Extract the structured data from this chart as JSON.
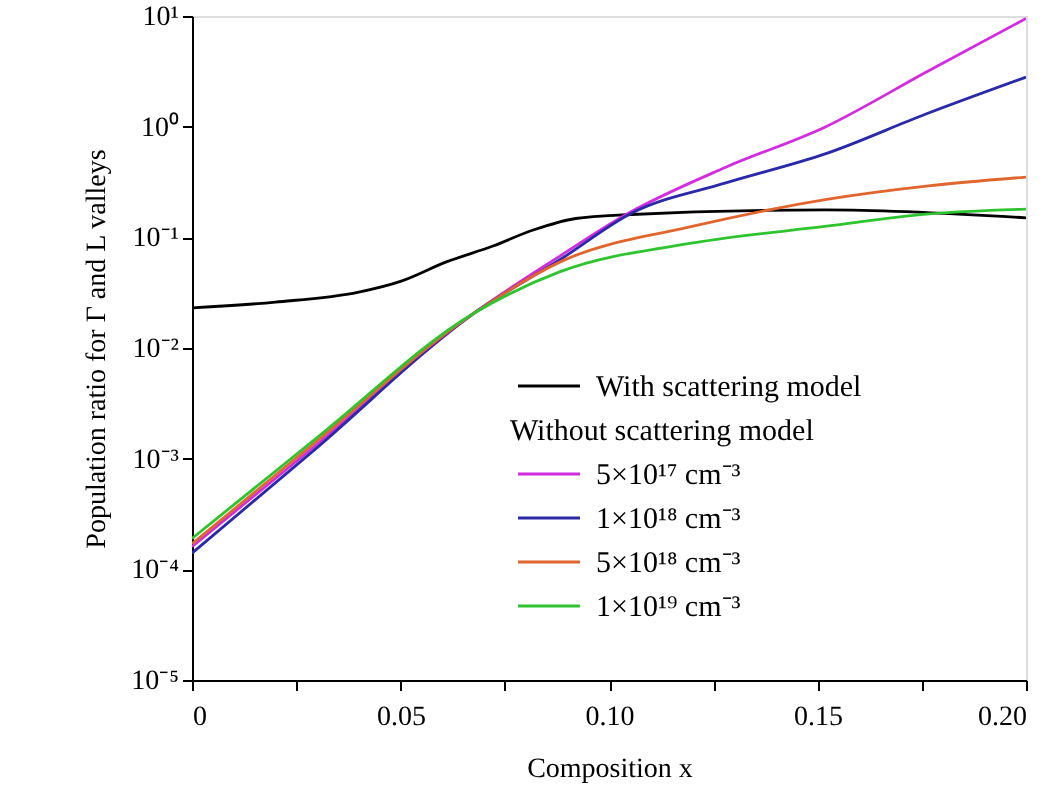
{
  "chart_data": {
    "type": "line",
    "xlabel": "Composition x",
    "ylabel": "Population ratio for Γ and L valleys",
    "xlim": [
      0,
      0.2
    ],
    "ylim": [
      1e-05,
      10
    ],
    "log": "y",
    "grid": false,
    "legend": "bottom right",
    "line_style": "solid",
    "marker": "none",
    "xticks": [
      0,
      {
        "value": 0.025,
        "label": null
      },
      0.05,
      {
        "value": 0.075,
        "label": null
      },
      {
        "value": 0.1,
        "label": "0.10"
      },
      {
        "value": 0.125,
        "label": null
      },
      0.15,
      {
        "value": 0.175,
        "label": null
      },
      {
        "value": 0.2,
        "label": "0.20"
      }
    ],
    "yticks": [
      {
        "value": 1e-05,
        "label": "10⁻⁵"
      },
      {
        "value": 0.0001,
        "label": "10⁻⁴"
      },
      {
        "value": 0.001,
        "label": "10⁻³"
      },
      {
        "value": 0.01,
        "label": "10⁻²"
      },
      {
        "value": 0.1,
        "label": "10⁻¹"
      },
      {
        "value": 1,
        "label": "10⁰"
      },
      {
        "value": 10,
        "label": "10¹"
      }
    ],
    "annotations": [
      "Without scattering model"
    ],
    "series": [
      {
        "name": "With scattering model",
        "color": "#000000",
        "x": [
          0,
          0.02,
          0.04,
          0.05,
          0.061,
          0.072,
          0.082,
          0.092,
          0.104,
          0.152,
          0.2
        ],
        "values": [
          0.023,
          0.026,
          0.032,
          0.04,
          0.06,
          0.083,
          0.117,
          0.148,
          0.16,
          0.177,
          0.15
        ]
      },
      {
        "name": "5×10¹⁷ cm⁻³",
        "color": "#d22be0",
        "x": [
          0,
          0.03,
          0.0675,
          0.0883,
          0.104,
          0.128,
          0.152,
          0.176,
          0.2
        ],
        "values": [
          0.00016,
          0.00135,
          0.0205,
          0.068,
          0.16,
          0.43,
          1.0,
          3.1,
          9.5
        ]
      },
      {
        "name": "1×10¹⁸ cm⁻³",
        "color": "#2a2aa8",
        "x": [
          0,
          0.03,
          0.0675,
          0.0883,
          0.1055,
          0.128,
          0.152,
          0.176,
          0.2
        ],
        "values": [
          0.00014,
          0.00126,
          0.0205,
          0.063,
          0.166,
          0.31,
          0.57,
          1.3,
          2.8
        ]
      },
      {
        "name": "5×10¹⁸ cm⁻³",
        "color": "#e0652e",
        "x": [
          0,
          0.03,
          0.0675,
          0.0883,
          0.1202,
          0.1522,
          0.1761,
          0.2
        ],
        "values": [
          0.00017,
          0.00145,
          0.0205,
          0.06,
          0.126,
          0.22,
          0.29,
          0.35
        ]
      },
      {
        "name": "1×10¹⁹ cm⁻³",
        "color": "#2fc42f",
        "x": [
          0,
          0.03,
          0.0675,
          0.0883,
          0.1202,
          0.1522,
          0.1761,
          0.2
        ],
        "values": [
          0.00019,
          0.00155,
          0.0205,
          0.049,
          0.089,
          0.126,
          0.162,
          0.18
        ]
      }
    ]
  }
}
